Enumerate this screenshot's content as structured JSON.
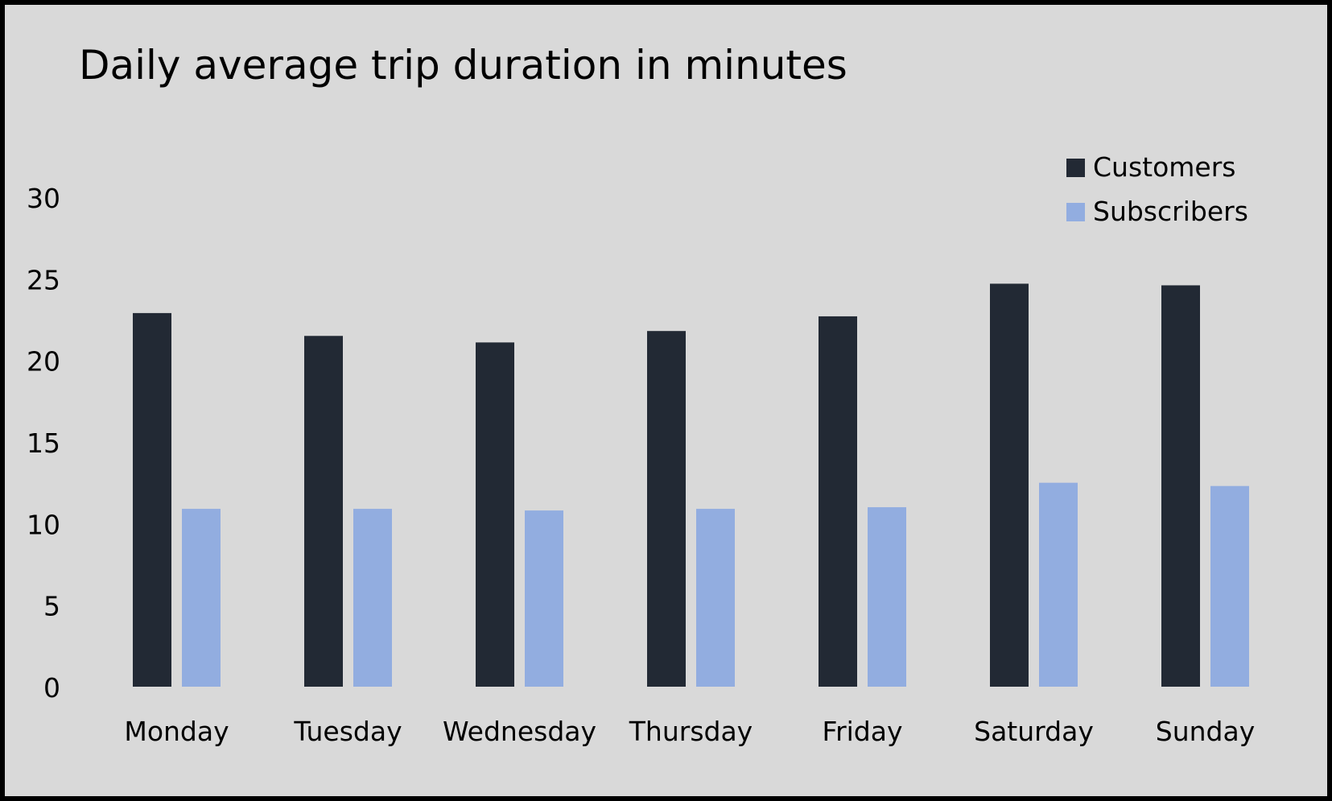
{
  "chart_data": {
    "type": "bar",
    "title": "Daily average trip duration in minutes",
    "xlabel": "",
    "ylabel": "",
    "categories": [
      "Monday",
      "Tuesday",
      "Wednesday",
      "Thursday",
      "Friday",
      "Saturday",
      "Sunday"
    ],
    "series": [
      {
        "name": "Customers",
        "color": "#222934",
        "values": [
          22.9,
          21.5,
          21.1,
          21.8,
          22.7,
          24.7,
          24.6
        ]
      },
      {
        "name": "Subscribers",
        "color": "#92ade0",
        "values": [
          10.9,
          10.9,
          10.8,
          10.9,
          11.0,
          12.5,
          12.3
        ]
      }
    ],
    "ylim": [
      0,
      30
    ],
    "yticks": [
      0,
      5,
      10,
      15,
      20,
      25,
      30
    ],
    "grid": false,
    "legend_position": "top-right",
    "background_color": "#d9d9d9"
  }
}
